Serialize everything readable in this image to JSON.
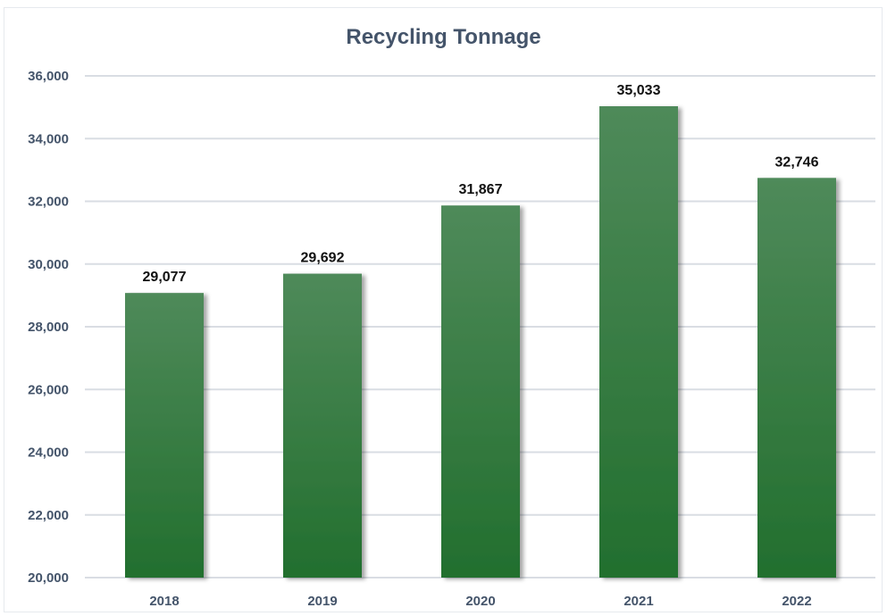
{
  "chart_data": {
    "type": "bar",
    "title": "Recycling Tonnage",
    "xlabel": "",
    "ylabel": "",
    "categories": [
      "2018",
      "2019",
      "2020",
      "2021",
      "2022"
    ],
    "values": [
      29077,
      29692,
      31867,
      35033,
      32746
    ],
    "data_labels": [
      "29,077",
      "29,692",
      "31,867",
      "35,033",
      "32,746"
    ],
    "ylim": [
      20000,
      36000
    ],
    "yticks": [
      20000,
      22000,
      24000,
      26000,
      28000,
      30000,
      32000,
      34000,
      36000
    ],
    "ytick_labels": [
      "20,000",
      "22,000",
      "24,000",
      "26,000",
      "28,000",
      "30,000",
      "32,000",
      "34,000",
      "36,000"
    ],
    "grid": true,
    "legend": "none",
    "colors": {
      "bar_top": "#4f8a5a",
      "bar_bottom": "#226f2e",
      "grid": "#d9dde3",
      "text": "#44546a"
    }
  }
}
